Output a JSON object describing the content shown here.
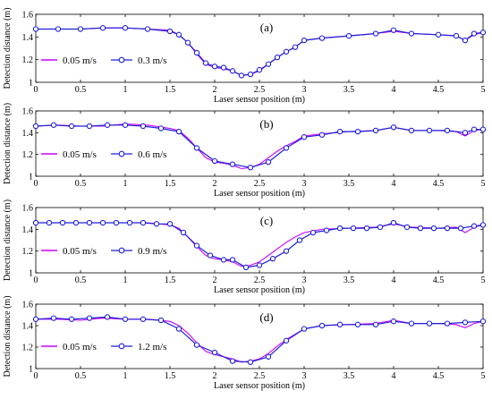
{
  "chart_data": [
    {
      "type": "line",
      "panel_label": "(a)",
      "xlabel": "Laser sensor position (m)",
      "ylabel": "Detection distance (m)",
      "xlim": [
        0,
        5
      ],
      "ylim": [
        1,
        1.6
      ],
      "xticks": [
        "0",
        "0.5",
        "1",
        "1.5",
        "2",
        "2.5",
        "3",
        "3.5",
        "4",
        "4.5",
        "5"
      ],
      "yticks": [
        "1",
        "1.2",
        "1.4",
        "1.6"
      ],
      "legend_position": "lower-left",
      "colors": {
        "reference": "#cc00ff",
        "measured": "#1f1fd6"
      },
      "series": [
        {
          "name": "0.05 m/s",
          "x": [
            0,
            0.25,
            0.5,
            0.75,
            1.0,
            1.25,
            1.5,
            1.6,
            1.7,
            1.8,
            1.9,
            2.0,
            2.1,
            2.2,
            2.3,
            2.4,
            2.5,
            2.6,
            2.7,
            2.8,
            2.9,
            3.0,
            3.2,
            3.5,
            3.8,
            4.0,
            4.2,
            4.5,
            4.7,
            4.8,
            4.9,
            5.0
          ],
          "y": [
            1.47,
            1.47,
            1.47,
            1.48,
            1.48,
            1.47,
            1.46,
            1.42,
            1.35,
            1.25,
            1.16,
            1.13,
            1.12,
            1.1,
            1.06,
            1.07,
            1.1,
            1.16,
            1.22,
            1.27,
            1.31,
            1.37,
            1.39,
            1.41,
            1.43,
            1.45,
            1.43,
            1.42,
            1.41,
            1.37,
            1.42,
            1.44
          ]
        },
        {
          "name": "0.3 m/s",
          "x": [
            0,
            0.25,
            0.5,
            0.75,
            1.0,
            1.25,
            1.5,
            1.6,
            1.7,
            1.8,
            1.9,
            2.0,
            2.1,
            2.2,
            2.3,
            2.4,
            2.5,
            2.6,
            2.7,
            2.8,
            2.9,
            3.0,
            3.2,
            3.5,
            3.8,
            4.0,
            4.2,
            4.5,
            4.7,
            4.8,
            4.9,
            5.0
          ],
          "y": [
            1.47,
            1.47,
            1.47,
            1.48,
            1.48,
            1.47,
            1.45,
            1.42,
            1.35,
            1.26,
            1.17,
            1.14,
            1.13,
            1.1,
            1.06,
            1.07,
            1.11,
            1.16,
            1.22,
            1.27,
            1.31,
            1.37,
            1.39,
            1.41,
            1.43,
            1.46,
            1.43,
            1.42,
            1.41,
            1.37,
            1.43,
            1.44
          ],
          "markers": true
        }
      ]
    },
    {
      "type": "line",
      "panel_label": "(b)",
      "xlabel": "Laser sensor position (m)",
      "ylabel": "Detection distance (m)",
      "xlim": [
        0,
        5
      ],
      "ylim": [
        1,
        1.6
      ],
      "xticks": [
        "0",
        "0.5",
        "1",
        "1.5",
        "2",
        "2.5",
        "3",
        "3.5",
        "4",
        "4.5",
        "5"
      ],
      "yticks": [
        "1",
        "1.2",
        "1.4",
        "1.6"
      ],
      "legend_position": "lower-left",
      "colors": {
        "reference": "#cc00ff",
        "measured": "#1f1fd6"
      },
      "series": [
        {
          "name": "0.05 m/s",
          "x": [
            0,
            0.25,
            0.5,
            0.75,
            1.0,
            1.25,
            1.5,
            1.6,
            1.7,
            1.8,
            1.9,
            2.0,
            2.1,
            2.2,
            2.3,
            2.4,
            2.5,
            2.6,
            2.7,
            2.8,
            2.9,
            3.0,
            3.2,
            3.5,
            3.8,
            4.0,
            4.2,
            4.5,
            4.7,
            4.8,
            4.9,
            5.0
          ],
          "y": [
            1.46,
            1.47,
            1.46,
            1.46,
            1.48,
            1.47,
            1.44,
            1.42,
            1.35,
            1.26,
            1.17,
            1.13,
            1.12,
            1.1,
            1.07,
            1.08,
            1.11,
            1.17,
            1.23,
            1.28,
            1.32,
            1.37,
            1.39,
            1.41,
            1.42,
            1.45,
            1.42,
            1.42,
            1.41,
            1.37,
            1.42,
            1.43
          ]
        },
        {
          "name": "0.6 m/s",
          "x": [
            0,
            0.2,
            0.4,
            0.6,
            0.8,
            1.0,
            1.2,
            1.4,
            1.6,
            1.8,
            2.0,
            2.2,
            2.4,
            2.6,
            2.8,
            3.0,
            3.2,
            3.4,
            3.6,
            3.8,
            4.0,
            4.2,
            4.4,
            4.6,
            4.8,
            4.9,
            5.0
          ],
          "y": [
            1.46,
            1.47,
            1.46,
            1.46,
            1.47,
            1.47,
            1.46,
            1.44,
            1.41,
            1.26,
            1.14,
            1.11,
            1.08,
            1.13,
            1.26,
            1.36,
            1.38,
            1.41,
            1.41,
            1.42,
            1.45,
            1.42,
            1.42,
            1.42,
            1.4,
            1.43,
            1.43
          ],
          "markers": true
        }
      ]
    },
    {
      "type": "line",
      "panel_label": "(c)",
      "xlabel": "Laser sensor position (m)",
      "ylabel": "Detection distance (m)",
      "xlim": [
        0,
        5
      ],
      "ylim": [
        1,
        1.6
      ],
      "xticks": [
        "0",
        "0.5",
        "1",
        "1.5",
        "2",
        "2.5",
        "3",
        "3.5",
        "4",
        "4.5",
        "5"
      ],
      "yticks": [
        "1",
        "1.2",
        "1.4",
        "1.6"
      ],
      "legend_position": "lower-left",
      "colors": {
        "reference": "#cc00ff",
        "measured": "#1f1fd6"
      },
      "series": [
        {
          "name": "0.05 m/s",
          "x": [
            0,
            0.25,
            0.5,
            0.75,
            1.0,
            1.25,
            1.5,
            1.6,
            1.7,
            1.8,
            1.9,
            2.0,
            2.1,
            2.2,
            2.3,
            2.4,
            2.5,
            2.6,
            2.7,
            2.8,
            2.9,
            3.0,
            3.2,
            3.5,
            3.8,
            4.0,
            4.2,
            4.5,
            4.7,
            4.8,
            4.9,
            5.0
          ],
          "y": [
            1.46,
            1.46,
            1.46,
            1.46,
            1.46,
            1.46,
            1.44,
            1.41,
            1.33,
            1.24,
            1.16,
            1.13,
            1.12,
            1.1,
            1.06,
            1.07,
            1.1,
            1.16,
            1.22,
            1.28,
            1.33,
            1.37,
            1.4,
            1.41,
            1.42,
            1.45,
            1.42,
            1.41,
            1.42,
            1.37,
            1.42,
            1.44
          ]
        },
        {
          "name": "0.9 m/s",
          "x": [
            0,
            0.15,
            0.3,
            0.45,
            0.6,
            0.75,
            0.9,
            1.05,
            1.2,
            1.35,
            1.5,
            1.65,
            1.8,
            1.95,
            2.1,
            2.2,
            2.35,
            2.5,
            2.65,
            2.8,
            2.95,
            3.1,
            3.25,
            3.4,
            3.55,
            3.7,
            3.85,
            4.0,
            4.15,
            4.3,
            4.45,
            4.6,
            4.75,
            4.9,
            5.0
          ],
          "y": [
            1.46,
            1.46,
            1.46,
            1.46,
            1.46,
            1.46,
            1.46,
            1.46,
            1.46,
            1.45,
            1.45,
            1.37,
            1.25,
            1.16,
            1.12,
            1.12,
            1.05,
            1.07,
            1.13,
            1.2,
            1.3,
            1.37,
            1.39,
            1.41,
            1.41,
            1.41,
            1.42,
            1.46,
            1.42,
            1.41,
            1.41,
            1.41,
            1.41,
            1.43,
            1.44
          ],
          "markers": true
        }
      ]
    },
    {
      "type": "line",
      "panel_label": "(d)",
      "xlabel": "Laser sensor position (m)",
      "ylabel": "Detection distance (m)",
      "xlim": [
        0,
        5
      ],
      "ylim": [
        1,
        1.6
      ],
      "xticks": [
        "0",
        "0.5",
        "1",
        "1.5",
        "2",
        "2.5",
        "3",
        "3.5",
        "4",
        "4.5",
        "5"
      ],
      "yticks": [
        "1",
        "1.2",
        "1.4",
        "1.6"
      ],
      "legend_position": "lower-left",
      "colors": {
        "reference": "#cc00ff",
        "measured": "#1f1fd6"
      },
      "series": [
        {
          "name": "0.05 m/s",
          "x": [
            0,
            0.25,
            0.5,
            0.75,
            1.0,
            1.25,
            1.5,
            1.6,
            1.7,
            1.8,
            1.9,
            2.0,
            2.1,
            2.2,
            2.3,
            2.4,
            2.5,
            2.6,
            2.7,
            2.8,
            2.9,
            3.0,
            3.2,
            3.5,
            3.8,
            4.0,
            4.2,
            4.5,
            4.7,
            4.8,
            4.9,
            5.0
          ],
          "y": [
            1.46,
            1.46,
            1.45,
            1.47,
            1.46,
            1.46,
            1.44,
            1.4,
            1.33,
            1.24,
            1.16,
            1.13,
            1.11,
            1.09,
            1.06,
            1.07,
            1.09,
            1.14,
            1.21,
            1.27,
            1.32,
            1.37,
            1.4,
            1.41,
            1.42,
            1.45,
            1.42,
            1.42,
            1.41,
            1.38,
            1.42,
            1.44
          ]
        },
        {
          "name": "1.2 m/s",
          "x": [
            0,
            0.2,
            0.4,
            0.6,
            0.8,
            1.0,
            1.2,
            1.4,
            1.6,
            1.8,
            2.0,
            2.2,
            2.4,
            2.6,
            2.8,
            3.0,
            3.2,
            3.4,
            3.6,
            3.8,
            4.0,
            4.2,
            4.4,
            4.6,
            4.8,
            5.0
          ],
          "y": [
            1.46,
            1.47,
            1.46,
            1.47,
            1.48,
            1.46,
            1.46,
            1.45,
            1.37,
            1.22,
            1.15,
            1.07,
            1.06,
            1.11,
            1.26,
            1.37,
            1.4,
            1.41,
            1.41,
            1.41,
            1.44,
            1.42,
            1.42,
            1.42,
            1.43,
            1.44
          ],
          "markers": true
        }
      ]
    }
  ]
}
